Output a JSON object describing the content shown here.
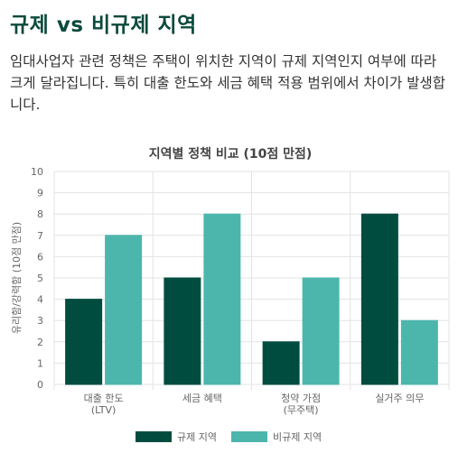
{
  "page": {
    "title": "규제 vs 비규제 지역",
    "intro": "임대사업자 관련 정책은 주택이 위치한 지역이 규제 지역인지 여부에 따라 크게 달라집니다. 특히 대출 한도와 세금 혜택 적용 범위에서 차이가 발생합니다."
  },
  "colors": {
    "regulated": "#004d40",
    "non_regulated": "#4db6ac",
    "grid": "#e3e3e3",
    "axis_text": "#666666"
  },
  "chart_data": {
    "type": "bar",
    "title": "지역별 정책 비교 (10점 만점)",
    "xlabel": "",
    "ylabel": "유리함/강력함 (10점 만점)",
    "ylim": [
      0,
      10
    ],
    "yticks": [
      0,
      1,
      2,
      3,
      4,
      5,
      6,
      7,
      8,
      9,
      10
    ],
    "categories": [
      [
        "대출 한도",
        "(LTV)"
      ],
      [
        "세금 혜택"
      ],
      [
        "청약 가점",
        "(무주택)"
      ],
      [
        "실거주 의무"
      ]
    ],
    "series": [
      {
        "name": "규제 지역",
        "values": [
          4,
          5,
          2,
          8
        ]
      },
      {
        "name": "비규제 지역",
        "values": [
          7,
          8,
          5,
          3
        ]
      }
    ],
    "grid": true,
    "legend": "bottom"
  }
}
